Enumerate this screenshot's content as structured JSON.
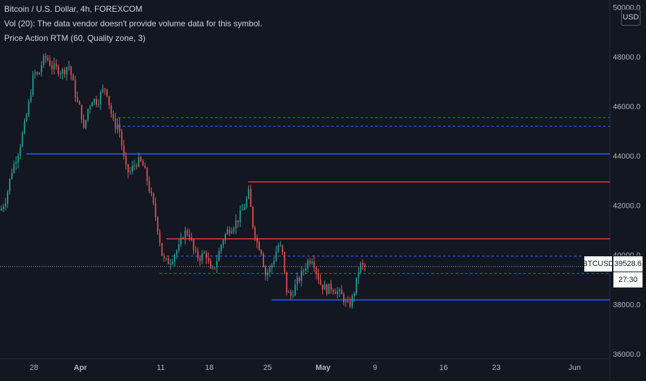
{
  "header": {
    "title": "Bitcoin / U.S. Dollar, 4h, FOREXCOM",
    "volume_note": "Vol (20): The data vendor doesn't provide volume data for this symbol.",
    "indicator": "Price Action RTM (60, Quality zone, 3)"
  },
  "currency": "USD",
  "price_tag": {
    "symbol": "BTCUSD",
    "price": "39528.6",
    "countdown": "27:30"
  },
  "colors": {
    "background": "#131722",
    "up": "#26a69a",
    "down": "#ef5350",
    "zone_blue": "#2962ff",
    "zone_red": "#f23645",
    "axis_text": "#b2b5be"
  },
  "chart_data": {
    "type": "candlestick",
    "y_axis": {
      "ticks": [
        36000,
        38000,
        40000,
        42000,
        44000,
        46000,
        48000,
        50000
      ],
      "tick_labels": [
        "36000.0",
        "38000.0",
        "40000.0",
        "42000.0",
        "44000.0",
        "46000.0",
        "48000.0",
        "50000.0"
      ],
      "range": [
        35800,
        50300
      ],
      "side": "right"
    },
    "x_axis": {
      "tick_labels": [
        "28",
        "Apr",
        "11",
        "18",
        "25",
        "May",
        "9",
        "16",
        "23",
        "Jun"
      ],
      "bold_labels": [
        "Apr",
        "May"
      ]
    },
    "close_path": [
      {
        "x": 0,
        "v": 41800
      },
      {
        "x": 8,
        "v": 42300
      },
      {
        "x": 16,
        "v": 43400
      },
      {
        "x": 26,
        "v": 44200
      },
      {
        "x": 36,
        "v": 45400
      },
      {
        "x": 42,
        "v": 46300
      },
      {
        "x": 48,
        "v": 47400
      },
      {
        "x": 54,
        "v": 47200
      },
      {
        "x": 60,
        "v": 47800
      },
      {
        "x": 66,
        "v": 48000
      },
      {
        "x": 74,
        "v": 47600
      },
      {
        "x": 82,
        "v": 47500
      },
      {
        "x": 90,
        "v": 47400
      },
      {
        "x": 98,
        "v": 47700
      },
      {
        "x": 104,
        "v": 47000
      },
      {
        "x": 110,
        "v": 46200
      },
      {
        "x": 116,
        "v": 45800
      },
      {
        "x": 120,
        "v": 45000
      },
      {
        "x": 126,
        "v": 45900
      },
      {
        "x": 132,
        "v": 46300
      },
      {
        "x": 140,
        "v": 46200
      },
      {
        "x": 146,
        "v": 46600
      },
      {
        "x": 152,
        "v": 46800
      },
      {
        "x": 158,
        "v": 45900
      },
      {
        "x": 164,
        "v": 45200
      },
      {
        "x": 170,
        "v": 45300
      },
      {
        "x": 174,
        "v": 44600
      },
      {
        "x": 180,
        "v": 43500
      },
      {
        "x": 186,
        "v": 43300
      },
      {
        "x": 192,
        "v": 43600
      },
      {
        "x": 198,
        "v": 43800
      },
      {
        "x": 204,
        "v": 43700
      },
      {
        "x": 210,
        "v": 43200
      },
      {
        "x": 216,
        "v": 42500
      },
      {
        "x": 222,
        "v": 41800
      },
      {
        "x": 228,
        "v": 40900
      },
      {
        "x": 234,
        "v": 39800
      },
      {
        "x": 240,
        "v": 39700
      },
      {
        "x": 246,
        "v": 39800
      },
      {
        "x": 252,
        "v": 40100
      },
      {
        "x": 258,
        "v": 40300
      },
      {
        "x": 264,
        "v": 40900
      },
      {
        "x": 272,
        "v": 40900
      },
      {
        "x": 280,
        "v": 40000
      },
      {
        "x": 288,
        "v": 39900
      },
      {
        "x": 296,
        "v": 40100
      },
      {
        "x": 304,
        "v": 39200
      },
      {
        "x": 312,
        "v": 39800
      },
      {
        "x": 320,
        "v": 40600
      },
      {
        "x": 328,
        "v": 41000
      },
      {
        "x": 336,
        "v": 41200
      },
      {
        "x": 344,
        "v": 41500
      },
      {
        "x": 352,
        "v": 42000
      },
      {
        "x": 358,
        "v": 42500
      },
      {
        "x": 364,
        "v": 41200
      },
      {
        "x": 370,
        "v": 40500
      },
      {
        "x": 376,
        "v": 40200
      },
      {
        "x": 382,
        "v": 39200
      },
      {
        "x": 388,
        "v": 39400
      },
      {
        "x": 394,
        "v": 39800
      },
      {
        "x": 400,
        "v": 40400
      },
      {
        "x": 406,
        "v": 40200
      },
      {
        "x": 412,
        "v": 38600
      },
      {
        "x": 418,
        "v": 38300
      },
      {
        "x": 426,
        "v": 38800
      },
      {
        "x": 434,
        "v": 39200
      },
      {
        "x": 442,
        "v": 39700
      },
      {
        "x": 450,
        "v": 39900
      },
      {
        "x": 456,
        "v": 39300
      },
      {
        "x": 462,
        "v": 38800
      },
      {
        "x": 470,
        "v": 38600
      },
      {
        "x": 478,
        "v": 38700
      },
      {
        "x": 486,
        "v": 38500
      },
      {
        "x": 494,
        "v": 38300
      },
      {
        "x": 500,
        "v": 37900
      },
      {
        "x": 506,
        "v": 38100
      },
      {
        "x": 512,
        "v": 38700
      },
      {
        "x": 518,
        "v": 39600
      },
      {
        "x": 524,
        "v": 39500
      },
      {
        "x": 528,
        "v": 39528.6
      }
    ],
    "zones": [
      {
        "type": "solid",
        "color": "blue",
        "price": 44080,
        "from_x": 38
      },
      {
        "type": "solid",
        "color": "red",
        "price": 42950,
        "from_x": 358
      },
      {
        "type": "solid",
        "color": "red",
        "price": 40650,
        "from_x": 240
      },
      {
        "type": "solid",
        "color": "blue",
        "price": 38180,
        "from_x": 392
      },
      {
        "type": "dashed",
        "color": "blue",
        "price": 45550,
        "from_x": 170
      },
      {
        "type": "dashed",
        "color": "blue",
        "price": 45200,
        "from_x": 170
      },
      {
        "type": "dashed",
        "color": "blue",
        "price": 39950,
        "from_x": 240
      },
      {
        "type": "dashed",
        "color": "blue",
        "price": 39250,
        "from_x": 230
      }
    ],
    "last_price": 39528.6
  }
}
